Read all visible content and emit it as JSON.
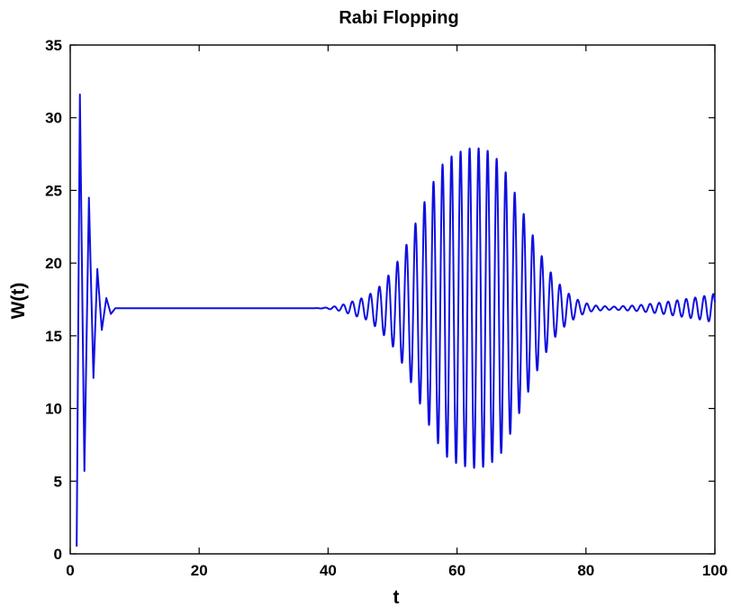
{
  "chart_data": {
    "type": "line",
    "title": "Rabi Flopping",
    "xlabel": "t",
    "ylabel": "W(t)",
    "xlim": [
      0,
      100
    ],
    "ylim": [
      0,
      35
    ],
    "xticks": [
      0,
      20,
      40,
      60,
      80,
      100
    ],
    "yticks": [
      0,
      5,
      10,
      15,
      20,
      25,
      30,
      35
    ],
    "grid": false,
    "legend": "none",
    "colors": {
      "series": "#1010e0",
      "axes": "#000000",
      "background": "#ffffff"
    },
    "series": [
      {
        "values_note_free": true,
        "x": [
          1,
          1.5,
          2.2,
          2.9,
          3.6,
          4.2,
          4.9,
          5.6,
          6.3,
          7,
          10,
          20,
          30,
          38,
          40,
          42,
          44,
          46,
          48,
          50,
          52,
          54,
          56,
          58,
          60,
          62,
          63.5,
          65,
          67,
          69,
          71,
          73,
          75,
          77,
          79,
          81,
          84,
          88,
          92,
          95,
          98,
          100
        ],
        "y": [
          0.5,
          31.6,
          5.7,
          24.5,
          12.1,
          19.6,
          15.4,
          17.6,
          16.5,
          16.9,
          16.9,
          16.9,
          16.9,
          16.9,
          16.95,
          17.1,
          17.4,
          17.7,
          18.4,
          19.5,
          21.1,
          23.2,
          25.3,
          27.0,
          27.6,
          27.9,
          27.9,
          27.7,
          26.8,
          24.8,
          22.7,
          20.6,
          19.0,
          18.0,
          17.4,
          17.1,
          17.0,
          17.1,
          17.3,
          17.5,
          17.7,
          17.9
        ]
      }
    ]
  }
}
